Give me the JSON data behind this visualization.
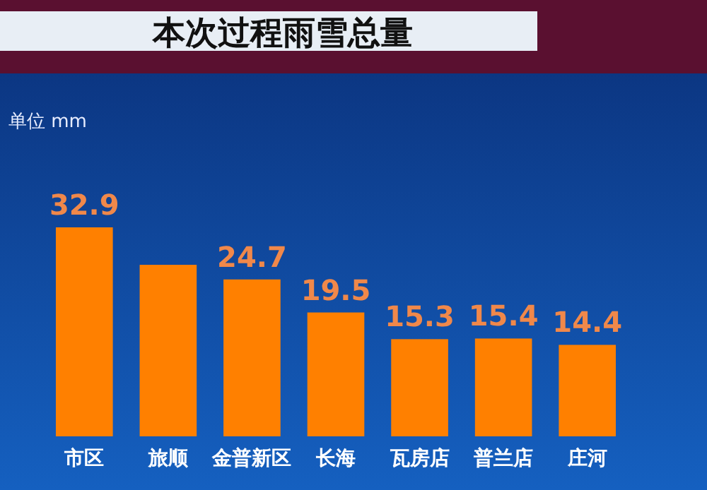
{
  "chart_data": {
    "type": "bar",
    "title": "本次过程雨雪总量",
    "annotations": [
      "单位 mm"
    ],
    "categories": [
      "市区",
      "旅顺",
      "金普新区",
      "长海",
      "瓦房店",
      "普兰店",
      "庄河"
    ],
    "values": [
      32.9,
      27,
      24.7,
      19.5,
      15.3,
      15.4,
      14.4
    ],
    "value_labels": [
      "32.9",
      null,
      "24.7",
      "19.5",
      "15.3",
      "15.4",
      "14.4"
    ],
    "color": "#ff8000"
  }
}
